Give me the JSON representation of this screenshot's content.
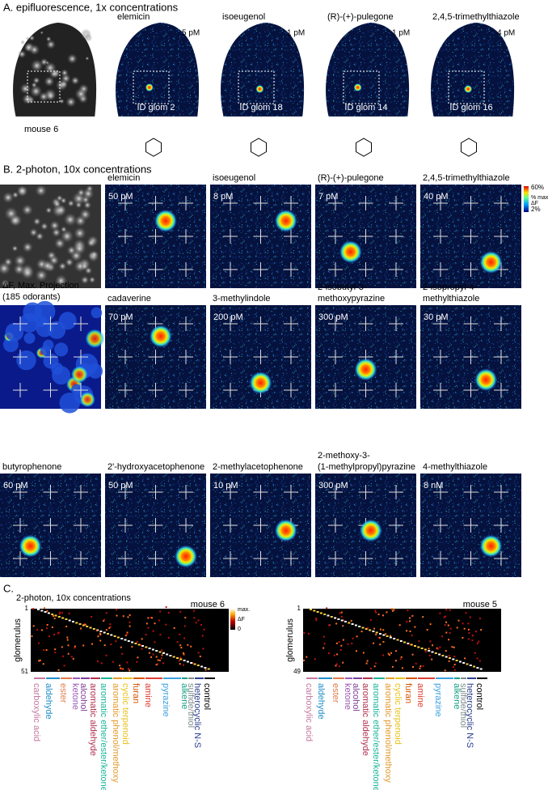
{
  "panel_a": {
    "label": "A. epifluorescence, 1x concentrations",
    "mouse": "mouse 6",
    "odorants": [
      {
        "name": "elemicin",
        "concentration": "5 pM",
        "glomerulus": "ID glom 2"
      },
      {
        "name": "isoeugenol",
        "concentration": "1 pM",
        "glomerulus": "ID glom 18"
      },
      {
        "name": "(R)-(+)-pulegone",
        "concentration": "1 pM",
        "glomerulus": "ID glom 14"
      },
      {
        "name": "2,4,5-trimethylthiazole",
        "concentration": "4 pM",
        "glomerulus": "ID glom 16"
      }
    ]
  },
  "panel_b": {
    "label": "B. 2-photon, 10x concentrations",
    "colorbar": {
      "max": "60%",
      "title": [
        "% max",
        "ΔF"
      ],
      "min": "2%"
    },
    "projection_label": [
      "ΔF, Max. Projection",
      "(185 odorants)"
    ],
    "odorants": [
      {
        "name": [
          "elemicin"
        ],
        "concentration": "50 pM"
      },
      {
        "name": [
          "isoeugenol"
        ],
        "concentration": "8 pM"
      },
      {
        "name": [
          "(R)-(+)-pulegone"
        ],
        "concentration": "7 pM"
      },
      {
        "name": [
          "2,4,5-trimethylthiazole"
        ],
        "concentration": "40 pM"
      },
      {
        "name": [
          "cadaverine"
        ],
        "concentration": "70 pM"
      },
      {
        "name": [
          "3-methylindole"
        ],
        "concentration": "200 pM"
      },
      {
        "name": [
          "2-isobutyl-3-",
          "methoxypyrazine"
        ],
        "concentration": "300 pM"
      },
      {
        "name": [
          "2-isopropyl-4-",
          "methylthiazole"
        ],
        "concentration": "30 pM"
      },
      {
        "name": [
          "butyrophenone"
        ],
        "concentration": "60 pM"
      },
      {
        "name": [
          "2'-hydroxyacetophenone"
        ],
        "concentration": "50 pM"
      },
      {
        "name": [
          "2-methylacetophenone"
        ],
        "concentration": "10 pM"
      },
      {
        "name": [
          "2-methoxy-3-",
          "(1-methylpropyl)pyrazine"
        ],
        "concentration": "300 pM"
      },
      {
        "name": [
          "4-methylthiazole"
        ],
        "concentration": "8 nM"
      }
    ]
  },
  "panel_c": {
    "label": "C.",
    "subtitle": "2-photon, 10x concentrations",
    "colorbar": {
      "max": "max.",
      "title": "ΔF",
      "min": "0"
    },
    "y_label": "glomerulus",
    "heatmaps": [
      {
        "mouse": "mouse 6",
        "first": "1",
        "last": "51"
      },
      {
        "mouse": "mouse 5",
        "first": "1",
        "last": "49"
      }
    ],
    "classes": [
      {
        "name": "carboxylic acid",
        "color": "#c47a9e"
      },
      {
        "name": "aldehyde",
        "color": "#1f8ec9"
      },
      {
        "name": "ester",
        "color": "#e07b4a"
      },
      {
        "name": "ketone",
        "color": "#9b59b6"
      },
      {
        "name": "alcohol",
        "color": "#7d3c98"
      },
      {
        "name": "aromatic aldehyde",
        "color": "#b03050"
      },
      {
        "name": "aromatic ether/ester/ketone",
        "color": "#18b59a"
      },
      {
        "name": "aromatic phenol/methoxy",
        "color": "#e39a2c"
      },
      {
        "name": "cyclic terpenoid",
        "color": "#e8c21a"
      },
      {
        "name": "furan",
        "color": "#d35400"
      },
      {
        "name": "amine",
        "color": "#e03c31"
      },
      {
        "name": "pyrazine",
        "color": "#3ba0e0"
      },
      {
        "name": "alkene",
        "color": "#16a085"
      },
      {
        "name": "sulfide/thiol",
        "color": "#7f8c8d"
      },
      {
        "name": "heterocyclic N-S",
        "color": "#2c3e91"
      },
      {
        "name": "control",
        "color": "#000000"
      }
    ]
  }
}
